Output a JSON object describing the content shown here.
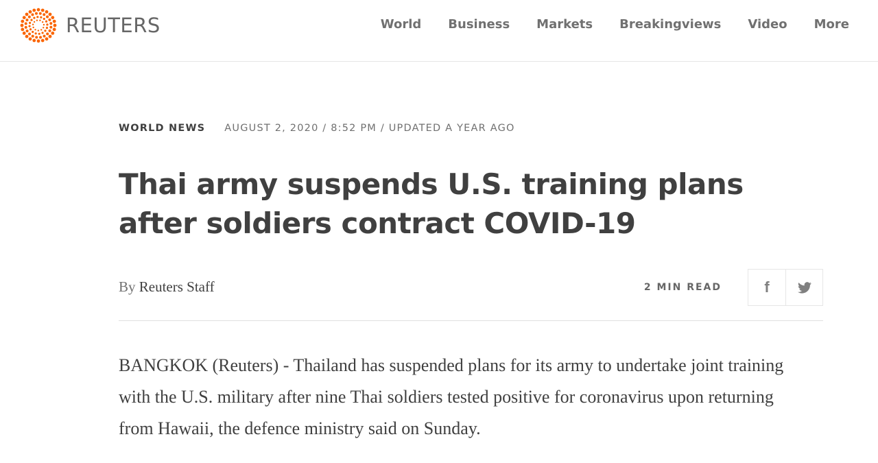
{
  "brand": {
    "name": "REUTERS",
    "accent": "#fa6400"
  },
  "nav": [
    "World",
    "Business",
    "Markets",
    "Breakingviews",
    "Video",
    "More"
  ],
  "article": {
    "section": "WORLD NEWS",
    "date": "AUGUST 2, 2020 / 8:52 PM / UPDATED A YEAR AGO",
    "headline": "Thai army suspends U.S. training plans after soldiers contract COVID-19",
    "by": "By",
    "author": "Reuters Staff",
    "read_time": "2 MIN READ",
    "share": {
      "facebook": "f",
      "twitter": "twitter-icon"
    },
    "body": "BANGKOK (Reuters) - Thailand has suspended plans for its army to undertake joint training with the U.S. military after nine Thai soldiers tested positive for coronavirus upon returning from Hawaii, the defence ministry said on Sunday."
  }
}
